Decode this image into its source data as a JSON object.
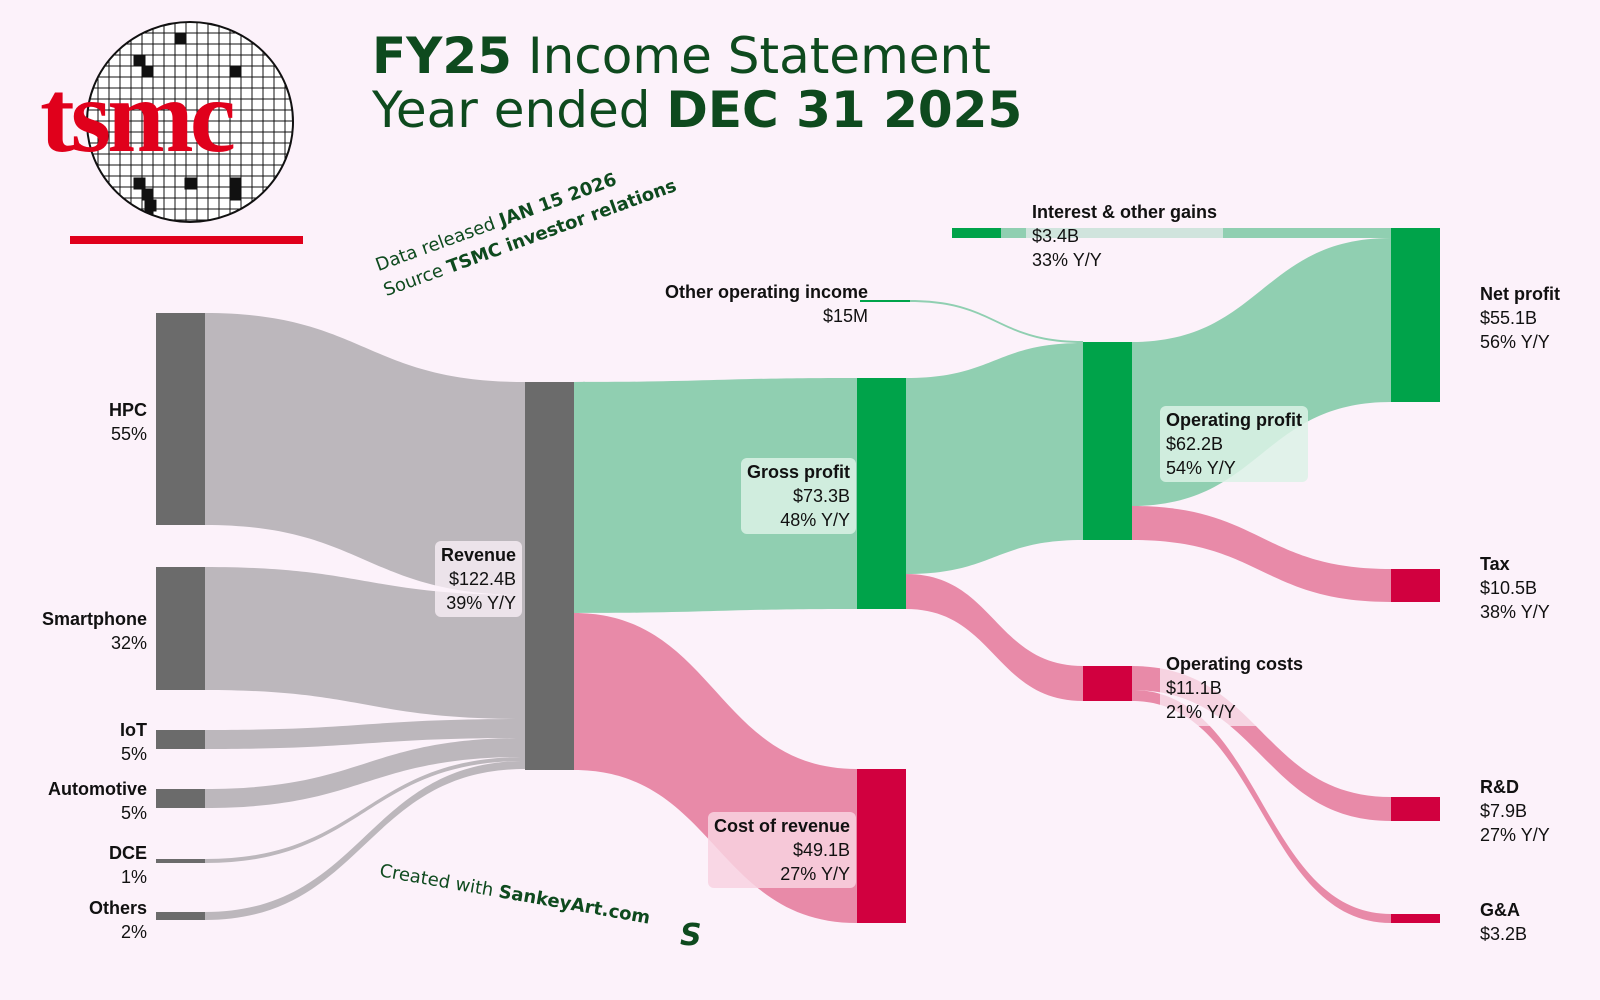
{
  "title": {
    "line1_bold": "FY25",
    "line1_rest": " Income Statement",
    "line2_rest": "Year ended ",
    "line2_bold": "DEC 31 2025"
  },
  "logo": {
    "text": "tsmc"
  },
  "notes": {
    "released_prefix": "Data released ",
    "released_date": "JAN 15 2026",
    "source_prefix": "Source ",
    "source_name": "TSMC investor relations",
    "credit_prefix": "Created with ",
    "credit_site": "SankeyArt.com"
  },
  "colors": {
    "background": "#fcf2fa",
    "segment_node": "#6b6b6b",
    "segment_link": "#bcb7bc",
    "profit_node": "#00a34a",
    "profit_link": "#90cfb1",
    "cost_node": "#d1003f",
    "cost_link": "#e88aa8",
    "title": "#0e4a1e",
    "logo": "#e0001b"
  },
  "chart_data": {
    "type": "sankey",
    "unit": "USD",
    "nodes": [
      {
        "id": "hpc",
        "name": "HPC",
        "share": "55%"
      },
      {
        "id": "smartphone",
        "name": "Smartphone",
        "share": "32%"
      },
      {
        "id": "iot",
        "name": "IoT",
        "share": "5%"
      },
      {
        "id": "automotive",
        "name": "Automotive",
        "share": "5%"
      },
      {
        "id": "dce",
        "name": "DCE",
        "share": "1%"
      },
      {
        "id": "others",
        "name": "Others",
        "share": "2%"
      },
      {
        "id": "revenue",
        "name": "Revenue",
        "value": "$122.4B",
        "yoy": "39% Y/Y"
      },
      {
        "id": "gross",
        "name": "Gross profit",
        "value": "$73.3B",
        "yoy": "48% Y/Y"
      },
      {
        "id": "cor",
        "name": "Cost of revenue",
        "value": "$49.1B",
        "yoy": "27% Y/Y"
      },
      {
        "id": "otherinc",
        "name": "Other operating income",
        "value": "$15M"
      },
      {
        "id": "opprofit",
        "name": "Operating profit",
        "value": "$62.2B",
        "yoy": "54% Y/Y"
      },
      {
        "id": "opcosts",
        "name": "Operating costs",
        "value": "$11.1B",
        "yoy": "21% Y/Y"
      },
      {
        "id": "interest",
        "name": "Interest & other gains",
        "value": "$3.4B",
        "yoy": "33% Y/Y"
      },
      {
        "id": "net",
        "name": "Net profit",
        "value": "$55.1B",
        "yoy": "56% Y/Y"
      },
      {
        "id": "tax",
        "name": "Tax",
        "value": "$10.5B",
        "yoy": "38% Y/Y"
      },
      {
        "id": "rd",
        "name": "R&D",
        "value": "$7.9B",
        "yoy": "27% Y/Y"
      },
      {
        "id": "ga",
        "name": "G&A",
        "value": "$3.2B"
      }
    ],
    "links": [
      {
        "source": "hpc",
        "target": "revenue",
        "value": 67.3
      },
      {
        "source": "smartphone",
        "target": "revenue",
        "value": 39.2
      },
      {
        "source": "iot",
        "target": "revenue",
        "value": 6.1
      },
      {
        "source": "automotive",
        "target": "revenue",
        "value": 6.1
      },
      {
        "source": "dce",
        "target": "revenue",
        "value": 1.2
      },
      {
        "source": "others",
        "target": "revenue",
        "value": 2.4
      },
      {
        "source": "revenue",
        "target": "gross",
        "value": 73.3
      },
      {
        "source": "revenue",
        "target": "cor",
        "value": 49.1
      },
      {
        "source": "gross",
        "target": "opprofit",
        "value": 62.2
      },
      {
        "source": "otherinc",
        "target": "opprofit",
        "value": 0.015
      },
      {
        "source": "gross",
        "target": "opcosts",
        "value": 11.1
      },
      {
        "source": "opprofit",
        "target": "net",
        "value": 51.7
      },
      {
        "source": "interest",
        "target": "net",
        "value": 3.4
      },
      {
        "source": "opprofit",
        "target": "tax",
        "value": 10.5
      },
      {
        "source": "opcosts",
        "target": "rd",
        "value": 7.9
      },
      {
        "source": "opcosts",
        "target": "ga",
        "value": 3.2
      }
    ]
  }
}
